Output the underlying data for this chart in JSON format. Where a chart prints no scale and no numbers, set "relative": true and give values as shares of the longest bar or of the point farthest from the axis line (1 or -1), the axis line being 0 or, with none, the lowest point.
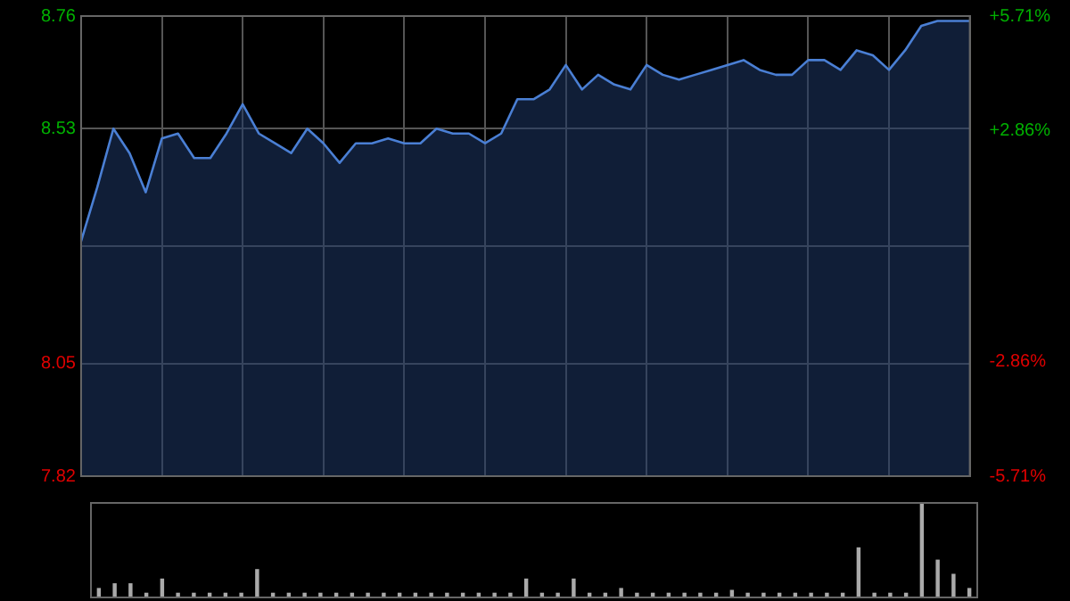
{
  "chart_data": [
    {
      "type": "area",
      "categories": [
        null,
        null,
        null,
        null,
        null,
        null,
        null,
        null,
        null,
        null,
        null,
        null,
        null,
        null,
        null,
        null,
        null,
        null,
        null,
        null,
        null,
        null,
        null,
        null,
        null,
        null,
        null,
        null,
        null,
        null,
        null,
        null,
        null,
        null,
        null,
        null,
        null,
        null,
        null,
        null,
        null,
        null,
        null,
        null,
        null,
        null,
        null,
        null,
        null,
        null,
        null,
        null,
        null,
        null,
        null,
        null
      ],
      "series": [
        {
          "color": "#4a7fd4",
          "values": [
            8.3,
            8.41,
            8.53,
            8.48,
            8.4,
            8.51,
            8.52,
            8.47,
            8.47,
            8.52,
            8.58,
            8.52,
            8.5,
            8.48,
            8.53,
            8.5,
            8.46,
            8.5,
            8.5,
            8.51,
            8.5,
            8.5,
            8.53,
            8.52,
            8.52,
            8.5,
            8.52,
            8.59,
            8.59,
            8.61,
            8.66,
            8.61,
            8.64,
            8.62,
            8.61,
            8.66,
            8.64,
            8.63,
            8.64,
            8.65,
            8.66,
            8.67,
            8.65,
            8.64,
            8.64,
            8.67,
            8.67,
            8.65,
            8.69,
            8.68,
            8.65,
            8.69,
            8.74,
            8.75,
            8.75,
            8.75
          ]
        }
      ],
      "ylim": [
        7.82,
        8.76
      ],
      "yticks": [
        7.82,
        8.05,
        {
          "value": 8.29,
          "label": null
        },
        8.53,
        8.76
      ],
      "y2lim": [
        -5.71,
        5.71
      ],
      "y2ticks": [
        {
          "value": -5.71,
          "label": "-5.71%"
        },
        {
          "value": -2.86,
          "label": "-2.86%"
        },
        {
          "value": 0,
          "label": null
        },
        {
          "value": 2.86,
          "label": "+2.86%"
        },
        {
          "value": 5.71,
          "label": "+5.71%"
        }
      ],
      "grid": true,
      "tick_labels": "y"
    },
    {
      "type": "bar",
      "relative": true,
      "categories": [
        null,
        null,
        null,
        null,
        null,
        null,
        null,
        null,
        null,
        null,
        null,
        null,
        null,
        null,
        null,
        null,
        null,
        null,
        null,
        null,
        null,
        null,
        null,
        null,
        null,
        null,
        null,
        null,
        null,
        null,
        null,
        null,
        null,
        null,
        null,
        null,
        null,
        null,
        null,
        null,
        null,
        null,
        null,
        null,
        null,
        null,
        null,
        null,
        null,
        null,
        null,
        null,
        null,
        null,
        null,
        null
      ],
      "series": [
        {
          "color": "#aaaaaa",
          "values": [
            0.1,
            0.15,
            0.15,
            0.05,
            0.2,
            0.05,
            0.05,
            0.05,
            0.05,
            0.05,
            0.3,
            0.05,
            0.05,
            0.05,
            0.05,
            0.05,
            0.05,
            0.05,
            0.05,
            0.05,
            0.05,
            0.05,
            0.05,
            0.05,
            0.05,
            0.05,
            0.05,
            0.2,
            0.05,
            0.05,
            0.2,
            0.05,
            0.05,
            0.1,
            0.05,
            0.05,
            0.05,
            0.05,
            0.05,
            0.05,
            0.08,
            0.05,
            0.05,
            0.05,
            0.05,
            0.05,
            0.05,
            0.05,
            0.53,
            0.05,
            0.05,
            0.05,
            1,
            0.4,
            0.25,
            0.1
          ]
        }
      ],
      "tick_labels": false
    }
  ]
}
